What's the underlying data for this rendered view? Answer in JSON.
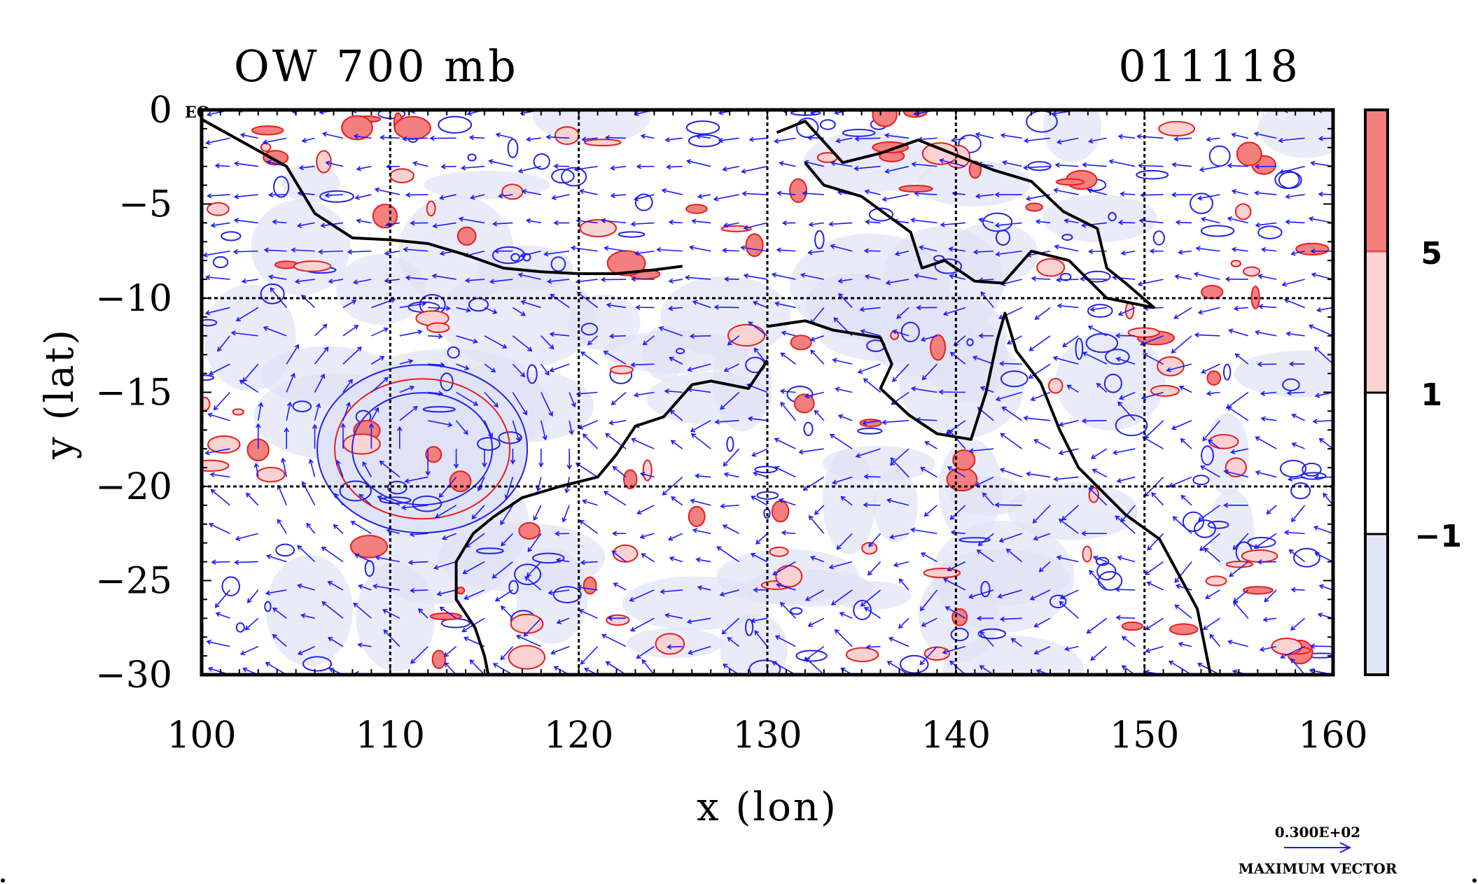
{
  "title_left": "OW 700 mb",
  "title_right": "011118",
  "corner_label": "EQ",
  "chart_data": {
    "type": "heatmap",
    "xlabel": "x (lon)",
    "ylabel": "y (lat)",
    "xlim": [
      100,
      160
    ],
    "ylim": [
      -30,
      0
    ],
    "xticks": [
      "100",
      "110",
      "120",
      "130",
      "140",
      "150",
      "160"
    ],
    "yticks": [
      "0",
      "−5",
      "−10",
      "−15",
      "−20",
      "−25",
      "−30"
    ],
    "gridlines_x": [
      110,
      120,
      130,
      140,
      150
    ],
    "gridlines_y": [
      -10,
      -20
    ],
    "grid": true,
    "legend": {
      "placement": "right",
      "levels": [
        "5",
        "1",
        "−1"
      ],
      "colors": [
        "#f47f7f",
        "#fbd2d2",
        "#ffffff",
        "#e0e3f6"
      ]
    },
    "vector_legend": {
      "value": "0.300E+02",
      "label": "MAXIMUM VECTOR"
    },
    "series": [
      {
        "name": "coastline",
        "points": [
          [
            100.0,
            -0.5
          ],
          [
            104.5,
            -3.0
          ],
          [
            106,
            -5.5
          ],
          [
            108,
            -6.8
          ],
          [
            110,
            -6.9
          ],
          [
            112,
            -7.1
          ],
          [
            114,
            -7.7
          ],
          [
            116,
            -8.4
          ],
          [
            118,
            -8.6
          ],
          [
            120,
            -8.7
          ],
          [
            122,
            -8.7
          ],
          [
            124,
            -8.5
          ],
          [
            125.5,
            -8.3
          ]
        ]
      },
      {
        "name": "australia-coast",
        "points": [
          [
            130,
            -11.5
          ],
          [
            132,
            -11.2
          ],
          [
            133.5,
            -11.7
          ],
          [
            136,
            -12.1
          ],
          [
            136.6,
            -13.5
          ],
          [
            136,
            -14.8
          ],
          [
            137.5,
            -16.2
          ],
          [
            139,
            -17.2
          ],
          [
            140.8,
            -17.5
          ],
          [
            141.6,
            -15
          ],
          [
            142.2,
            -12.2
          ],
          [
            142.6,
            -10.8
          ],
          [
            143.2,
            -12.8
          ],
          [
            144.5,
            -14.5
          ],
          [
            145.5,
            -17
          ],
          [
            146.5,
            -19
          ],
          [
            149,
            -21.5
          ],
          [
            150.8,
            -22.8
          ],
          [
            152.8,
            -26.5
          ],
          [
            153.5,
            -30
          ]
        ]
      },
      {
        "name": "australia-west-coast",
        "points": [
          [
            130,
            -13.3
          ],
          [
            129,
            -14.8
          ],
          [
            127,
            -14.4
          ],
          [
            126,
            -14.6
          ],
          [
            124.5,
            -16.3
          ],
          [
            123,
            -16.8
          ],
          [
            122,
            -18.3
          ],
          [
            121,
            -19.5
          ],
          [
            119,
            -20
          ],
          [
            117,
            -20.6
          ],
          [
            115.5,
            -21.6
          ],
          [
            114.4,
            -22.5
          ],
          [
            113.5,
            -24
          ],
          [
            113.5,
            -26
          ],
          [
            114.5,
            -27.5
          ],
          [
            115,
            -29
          ],
          [
            115.2,
            -30
          ]
        ]
      },
      {
        "name": "new-guinea-coast",
        "points": [
          [
            130.5,
            -1.2
          ],
          [
            132,
            -0.6
          ],
          [
            134,
            -2.8
          ],
          [
            136,
            -2.3
          ],
          [
            138,
            -1.6
          ],
          [
            140.5,
            -2.6
          ],
          [
            142,
            -3.2
          ],
          [
            144,
            -3.8
          ],
          [
            145.7,
            -5.4
          ],
          [
            147.5,
            -6.3
          ],
          [
            148,
            -8.4
          ],
          [
            149,
            -9.2
          ],
          [
            150.5,
            -10.5
          ],
          [
            148,
            -10
          ],
          [
            146,
            -8
          ],
          [
            144,
            -7.5
          ],
          [
            142.5,
            -9.2
          ],
          [
            141,
            -9.1
          ],
          [
            139.4,
            -8.0
          ],
          [
            138.2,
            -8.4
          ],
          [
            137.6,
            -6.5
          ],
          [
            135,
            -4.6
          ],
          [
            133,
            -4.0
          ],
          [
            132,
            -2.8
          ]
        ]
      }
    ],
    "features": [
      {
        "name": "cyclone-center",
        "x": 112.3,
        "y": -18.3,
        "ow": 5
      },
      {
        "name": "cyclone-core",
        "x": 111.7,
        "y": -18.0,
        "ow": -1
      }
    ]
  }
}
